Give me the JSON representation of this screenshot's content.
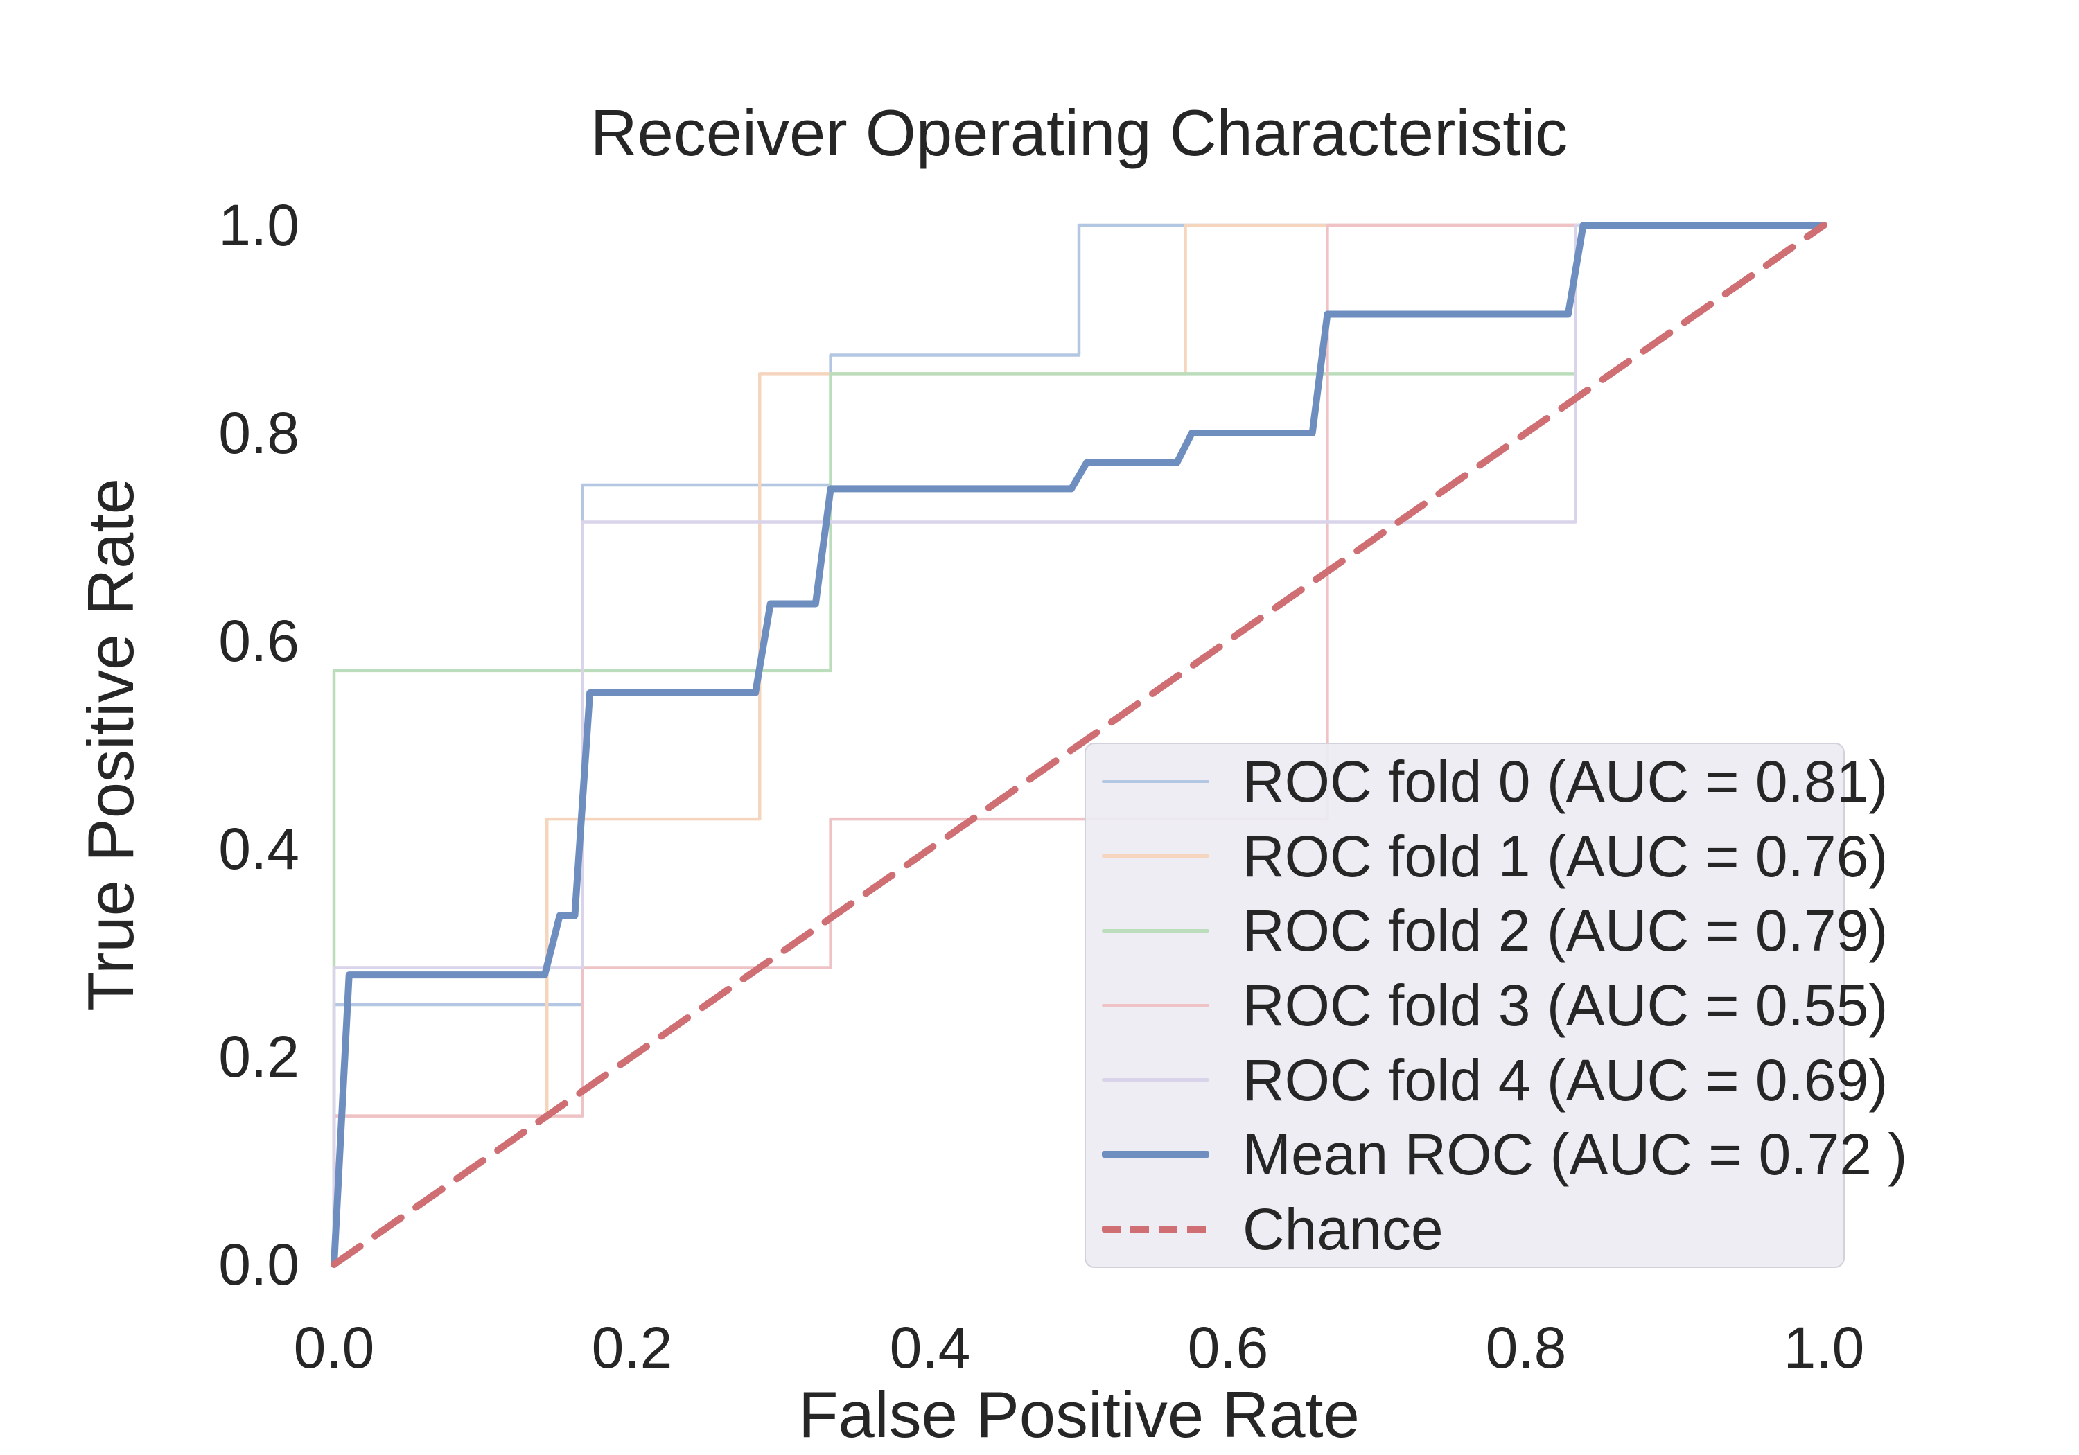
{
  "title": "Receiver Operating Characteristic",
  "axes": {
    "xlabel": "False Positive Rate",
    "ylabel": "True Positive Rate",
    "x_ticks": [
      {
        "value": 0.0,
        "label": "0.0"
      },
      {
        "value": 0.2,
        "label": "0.2"
      },
      {
        "value": 0.4,
        "label": "0.4"
      },
      {
        "value": 0.6,
        "label": "0.6"
      },
      {
        "value": 0.8,
        "label": "0.8"
      },
      {
        "value": 1.0,
        "label": "1.0"
      }
    ],
    "y_ticks": [
      {
        "value": 0.0,
        "label": "0.0"
      },
      {
        "value": 0.2,
        "label": "0.2"
      },
      {
        "value": 0.4,
        "label": "0.4"
      },
      {
        "value": 0.6,
        "label": "0.6"
      },
      {
        "value": 0.8,
        "label": "0.8"
      },
      {
        "value": 1.0,
        "label": "1.0"
      }
    ]
  },
  "colors": {
    "background": "#ffffff",
    "text": "#262626",
    "legend_fill": "rgba(236,235,242,0.92)",
    "legend_border": "#d2d2dc"
  },
  "chart_data": {
    "type": "line",
    "title": "Receiver Operating Characteristic",
    "xlabel": "False Positive Rate",
    "ylabel": "True Positive Rate",
    "xlim": [
      0,
      1
    ],
    "ylim": [
      0,
      1
    ],
    "grid": false,
    "legend_position": "lower right",
    "series": [
      {
        "id": "roc-fold-0",
        "label": "ROC fold 0 (AUC = 0.81)",
        "auc": 0.81,
        "color": "#b3c7e2",
        "width": 4.5,
        "dash": null,
        "points": [
          [
            0,
            0
          ],
          [
            0,
            0.25
          ],
          [
            0.1667,
            0.25
          ],
          [
            0.1667,
            0.75
          ],
          [
            0.3333,
            0.75
          ],
          [
            0.3333,
            0.875
          ],
          [
            0.5,
            0.875
          ],
          [
            0.5,
            1
          ],
          [
            1,
            1
          ]
        ]
      },
      {
        "id": "roc-fold-1",
        "label": "ROC fold 1 (AUC = 0.76)",
        "auc": 0.76,
        "color": "#f5d5bd",
        "width": 4.5,
        "dash": null,
        "points": [
          [
            0,
            0
          ],
          [
            0,
            0.1429
          ],
          [
            0.1429,
            0.1429
          ],
          [
            0.1429,
            0.4286
          ],
          [
            0.2857,
            0.4286
          ],
          [
            0.2857,
            0.8571
          ],
          [
            0.5714,
            0.8571
          ],
          [
            0.5714,
            1
          ],
          [
            1,
            1
          ]
        ]
      },
      {
        "id": "roc-fold-2",
        "label": "ROC fold 2 (AUC = 0.79)",
        "auc": 0.79,
        "color": "#bcddbb",
        "width": 4.5,
        "dash": null,
        "points": [
          [
            0,
            0
          ],
          [
            0,
            0.5714
          ],
          [
            0.3333,
            0.5714
          ],
          [
            0.3333,
            0.8571
          ],
          [
            0.8333,
            0.8571
          ],
          [
            0.8333,
            1
          ],
          [
            1,
            1
          ]
        ]
      },
      {
        "id": "roc-fold-3",
        "label": "ROC fold 3 (AUC = 0.55)",
        "auc": 0.55,
        "color": "#efc3c5",
        "width": 4.5,
        "dash": null,
        "points": [
          [
            0,
            0
          ],
          [
            0,
            0.1429
          ],
          [
            0.1667,
            0.1429
          ],
          [
            0.1667,
            0.2857
          ],
          [
            0.3333,
            0.2857
          ],
          [
            0.3333,
            0.4286
          ],
          [
            0.6667,
            0.4286
          ],
          [
            0.6667,
            1
          ],
          [
            1,
            1
          ]
        ]
      },
      {
        "id": "roc-fold-4",
        "label": "ROC fold 4 (AUC = 0.69)",
        "auc": 0.69,
        "color": "#d9d4ea",
        "width": 4.5,
        "dash": null,
        "points": [
          [
            0,
            0
          ],
          [
            0,
            0.2857
          ],
          [
            0.1667,
            0.2857
          ],
          [
            0.1667,
            0.7143
          ],
          [
            0.8333,
            0.7143
          ],
          [
            0.8333,
            1
          ],
          [
            1,
            1
          ]
        ]
      },
      {
        "id": "mean-roc",
        "label": "Mean ROC (AUC = 0.72 )",
        "auc": 0.72,
        "color": "#6e8ebf",
        "width": 10,
        "dash": null,
        "points": [
          [
            0,
            0
          ],
          [
            0.0101,
            0.2786
          ],
          [
            0.1414,
            0.2786
          ],
          [
            0.1515,
            0.3357
          ],
          [
            0.1616,
            0.3357
          ],
          [
            0.1717,
            0.55
          ],
          [
            0.2828,
            0.55
          ],
          [
            0.2929,
            0.6357
          ],
          [
            0.3232,
            0.6357
          ],
          [
            0.3333,
            0.7464
          ],
          [
            0.4949,
            0.7464
          ],
          [
            0.5051,
            0.7714
          ],
          [
            0.5657,
            0.7714
          ],
          [
            0.5758,
            0.8
          ],
          [
            0.6566,
            0.8
          ],
          [
            0.6667,
            0.9143
          ],
          [
            0.8283,
            0.9143
          ],
          [
            0.8384,
            1
          ],
          [
            1,
            1
          ]
        ]
      },
      {
        "id": "chance",
        "label": "Chance",
        "auc": null,
        "color": "#cf6f74",
        "width": 10,
        "dash": [
          46,
          26
        ],
        "points": [
          [
            0,
            0
          ],
          [
            1,
            1
          ]
        ]
      }
    ]
  }
}
